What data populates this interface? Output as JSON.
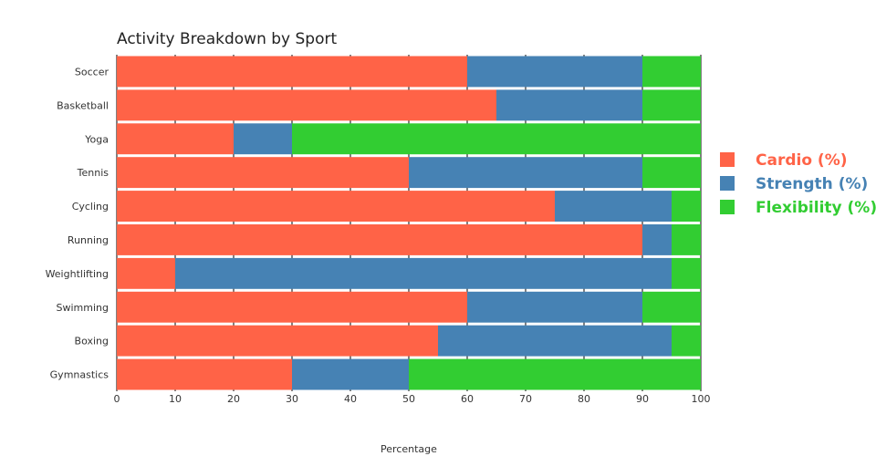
{
  "chart_data": {
    "type": "bar",
    "orientation": "horizontal",
    "stacked": true,
    "title": "Activity Breakdown by Sport",
    "xlabel": "Percentage",
    "ylabel": "",
    "xlim": [
      0,
      100
    ],
    "x_ticks": [
      "0",
      "10",
      "20",
      "30",
      "40",
      "50",
      "60",
      "70",
      "80",
      "90",
      "100"
    ],
    "grid": true,
    "legend_position": "right",
    "categories": [
      "Soccer",
      "Basketball",
      "Yoga",
      "Tennis",
      "Cycling",
      "Running",
      "Weightlifting",
      "Swimming",
      "Boxing",
      "Gymnastics"
    ],
    "series": [
      {
        "name": "Cardio (%)",
        "color": "#FF6347",
        "values": [
          60,
          65,
          20,
          50,
          75,
          90,
          10,
          60,
          55,
          30
        ]
      },
      {
        "name": "Strength (%)",
        "color": "#4682B4",
        "values": [
          30,
          25,
          10,
          40,
          20,
          5,
          85,
          30,
          40,
          20
        ]
      },
      {
        "name": "Flexibility (%)",
        "color": "#32CD32",
        "values": [
          10,
          10,
          70,
          10,
          5,
          5,
          5,
          10,
          5,
          50
        ]
      }
    ]
  }
}
